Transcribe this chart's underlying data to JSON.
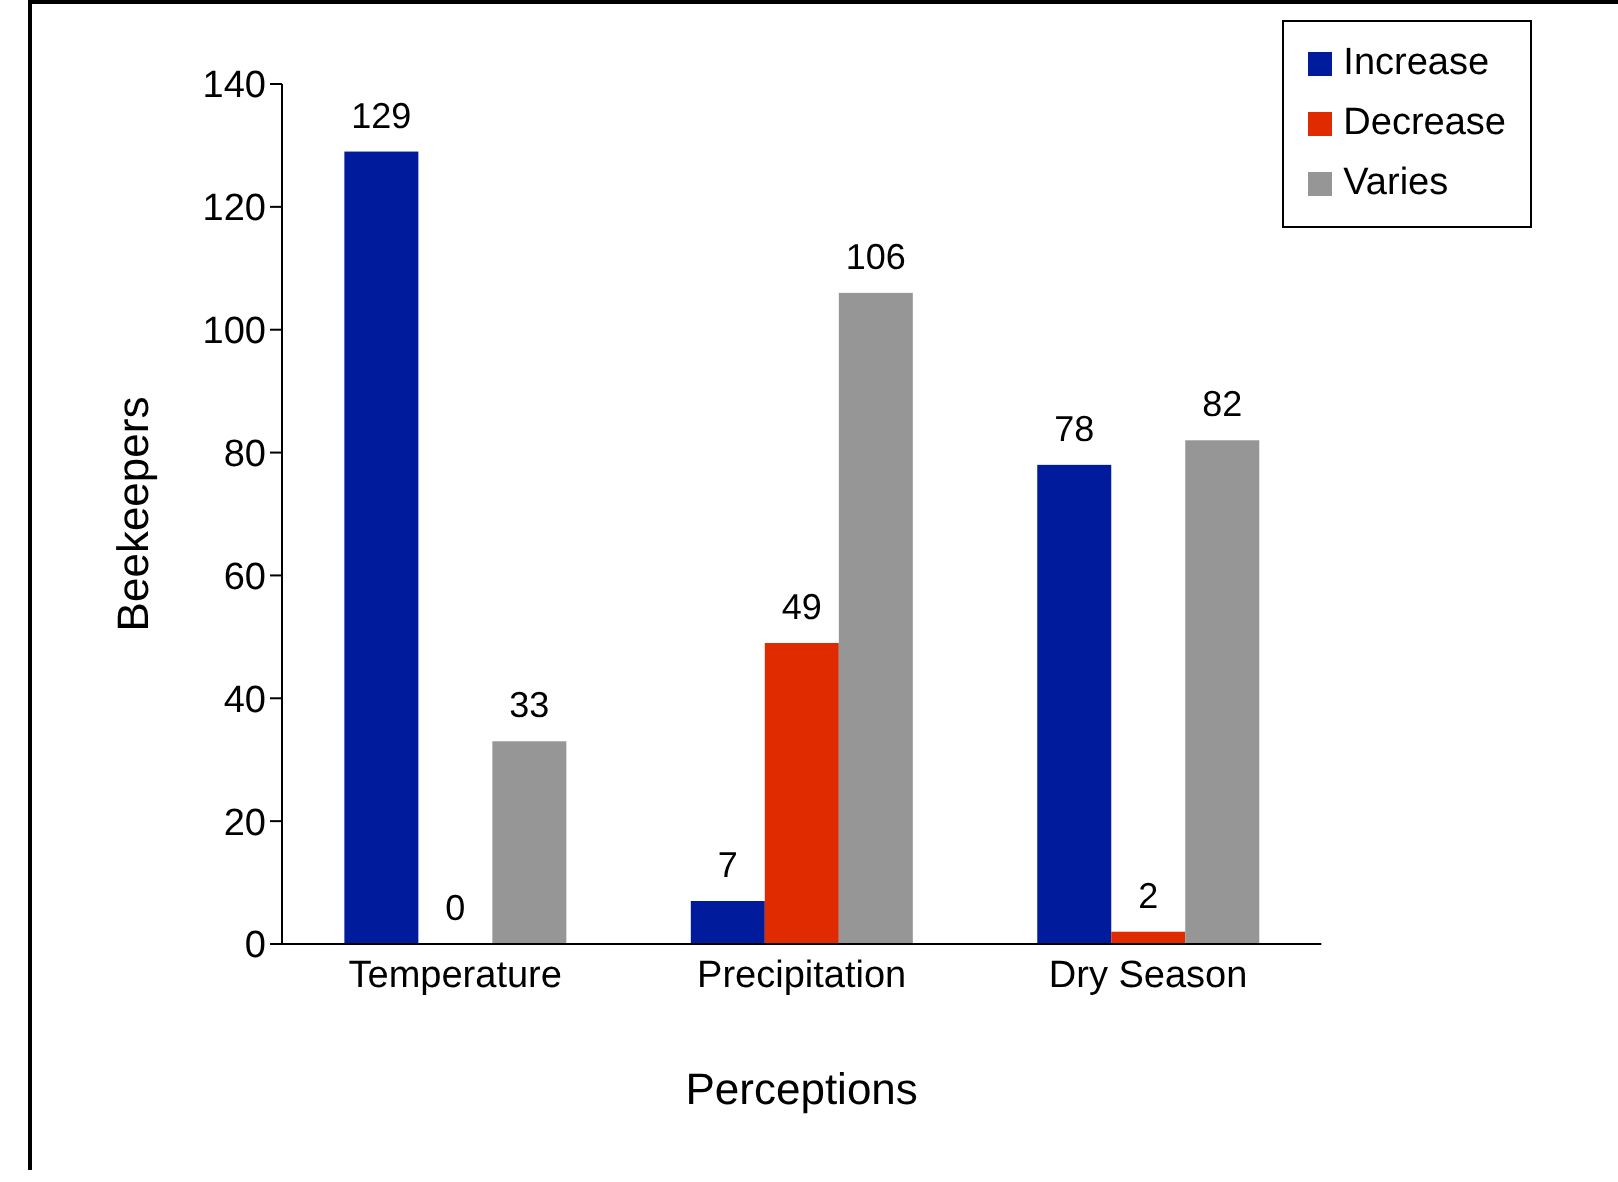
{
  "chart_data": {
    "type": "bar",
    "xlabel": "Perceptions",
    "ylabel": "Beekeepers",
    "categories": [
      "Temperature",
      "Precipitation",
      "Dry Season"
    ],
    "series": [
      {
        "name": "Increase",
        "color": "#001c9c",
        "values": [
          129,
          7,
          78
        ]
      },
      {
        "name": "Decrease",
        "color": "#e02b00",
        "values": [
          0,
          49,
          2
        ]
      },
      {
        "name": "Varies",
        "color": "#969696",
        "values": [
          33,
          106,
          82
        ]
      }
    ],
    "ylim": [
      0,
      140
    ],
    "yticks": [
      0,
      20,
      40,
      60,
      80,
      100,
      120,
      140
    ],
    "grid": false,
    "legend": "top right",
    "data_labels": true
  }
}
